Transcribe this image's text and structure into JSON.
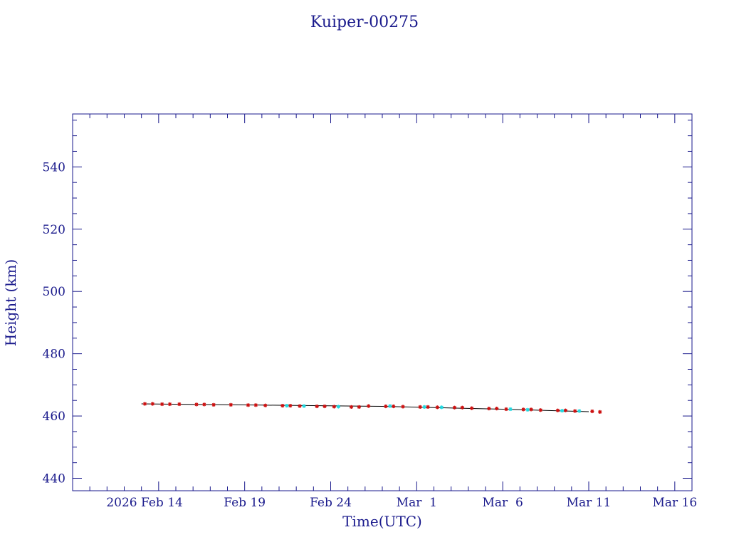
{
  "chart_data": {
    "type": "scatter",
    "title": "Kuiper-00275",
    "xlabel": "Time(UTC)",
    "ylabel": "Height (km)",
    "ylim": [
      436,
      557
    ],
    "xlim": [
      "2026-02-09",
      "2026-03-17"
    ],
    "grid": false,
    "y_ticks": [
      440,
      460,
      480,
      500,
      520,
      540
    ],
    "x_ticks": [
      {
        "date": "2026-02-14",
        "label": "2026 Feb 14"
      },
      {
        "date": "2026-02-19",
        "label": "Feb 19"
      },
      {
        "date": "2026-02-24",
        "label": "Feb 24"
      },
      {
        "date": "2026-03-01",
        "label": "Mar  1"
      },
      {
        "date": "2026-03-06",
        "label": "Mar  6"
      },
      {
        "date": "2026-03-11",
        "label": "Mar 11"
      },
      {
        "date": "2026-03-16",
        "label": "Mar 16"
      }
    ],
    "colors": {
      "axis": "#1a1a8c",
      "line": "#000000",
      "red_points": "#cc1111",
      "cyan_points": "#22d8e0"
    },
    "line": {
      "x": [
        "2026-02-13",
        "2026-02-20",
        "2026-02-27",
        "2026-03-06",
        "2026-03-11"
      ],
      "y": [
        463.9,
        463.5,
        463.1,
        462.2,
        461.4
      ]
    },
    "series": [
      {
        "color_key": "red_points",
        "x": [
          "2026-02-13",
          "2026-02-13",
          "2026-02-14",
          "2026-02-14",
          "2026-02-15",
          "2026-02-16",
          "2026-02-16",
          "2026-02-17",
          "2026-02-18",
          "2026-02-19",
          "2026-02-19",
          "2026-02-20",
          "2026-02-21",
          "2026-02-21",
          "2026-02-22",
          "2026-02-23",
          "2026-02-23",
          "2026-02-24",
          "2026-02-25",
          "2026-02-25",
          "2026-02-26",
          "2026-02-27",
          "2026-02-27",
          "2026-02-28",
          "2026-03-01",
          "2026-03-01",
          "2026-03-02",
          "2026-03-03",
          "2026-03-03",
          "2026-03-04",
          "2026-03-05",
          "2026-03-05",
          "2026-03-06",
          "2026-03-07",
          "2026-03-07",
          "2026-03-08",
          "2026-03-09",
          "2026-03-09",
          "2026-03-10",
          "2026-03-11",
          "2026-03-11"
        ],
        "y": [
          463.9,
          463.9,
          463.8,
          463.8,
          463.8,
          463.7,
          463.7,
          463.6,
          463.6,
          463.5,
          463.5,
          463.4,
          463.3,
          463.3,
          463.2,
          463.1,
          463.1,
          463.0,
          462.9,
          462.9,
          463.2,
          463.1,
          463.1,
          463.0,
          462.9,
          462.9,
          462.8,
          462.7,
          462.7,
          462.5,
          462.4,
          462.4,
          462.2,
          462.1,
          462.1,
          461.9,
          461.8,
          461.8,
          461.6,
          461.5,
          461.3
        ]
      },
      {
        "color_key": "cyan_points",
        "x": [
          "2026-02-21",
          "2026-02-22",
          "2026-02-24",
          "2026-02-27",
          "2026-03-01",
          "2026-03-02",
          "2026-03-06",
          "2026-03-07",
          "2026-03-09",
          "2026-03-10"
        ],
        "y": [
          463.3,
          463.2,
          463.0,
          463.2,
          462.9,
          462.8,
          462.2,
          462.0,
          461.7,
          461.6
        ]
      }
    ]
  }
}
